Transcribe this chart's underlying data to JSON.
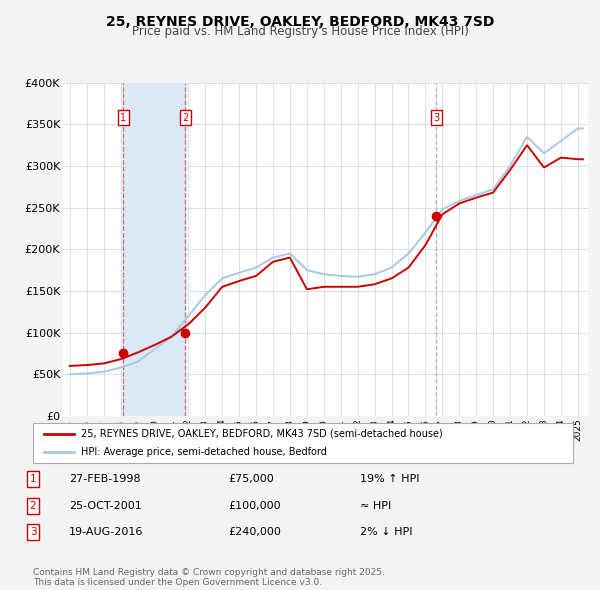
{
  "title": "25, REYNES DRIVE, OAKLEY, BEDFORD, MK43 7SD",
  "subtitle": "Price paid vs. HM Land Registry's House Price Index (HPI)",
  "bg_color": "#f2f4f5",
  "plot_bg": "#ffffff",
  "grid_color": "#c8d4e0",
  "red_line_color": "#cc0000",
  "blue_line_color": "#a8c8e8",
  "sale_marker_color": "#cc0000",
  "sale_dates": [
    1998.15,
    2001.81,
    2016.63
  ],
  "sale_prices": [
    75000,
    100000,
    240000
  ],
  "sale_labels": [
    "1",
    "2",
    "3"
  ],
  "vline_color_12": "#e06060",
  "vline_color_3": "#aaaacc",
  "shade_color": "#daeaf5",
  "legend_label_red": "25, REYNES DRIVE, OAKLEY, BEDFORD, MK43 7SD (semi-detached house)",
  "legend_label_blue": "HPI: Average price, semi-detached house, Bedford",
  "table_rows": [
    [
      "1",
      "27-FEB-1998",
      "£75,000",
      "19% ↑ HPI"
    ],
    [
      "2",
      "25-OCT-2001",
      "£100,000",
      "≈ HPI"
    ],
    [
      "3",
      "19-AUG-2016",
      "£240,000",
      "2% ↓ HPI"
    ]
  ],
  "footnote": "Contains HM Land Registry data © Crown copyright and database right 2025.\nThis data is licensed under the Open Government Licence v3.0.",
  "ylim": [
    0,
    400000
  ],
  "yticks": [
    0,
    50000,
    100000,
    150000,
    200000,
    250000,
    300000,
    350000,
    400000
  ],
  "ytick_labels": [
    "£0",
    "£50K",
    "£100K",
    "£150K",
    "£200K",
    "£250K",
    "£300K",
    "£350K",
    "£400K"
  ],
  "xlim_start": 1994.6,
  "xlim_end": 2025.6,
  "hpi_years": [
    1995,
    1996,
    1997,
    1998,
    1999,
    2000,
    2001,
    2002,
    2003,
    2004,
    2005,
    2006,
    2007,
    2008,
    2009,
    2010,
    2011,
    2012,
    2013,
    2014,
    2015,
    2016,
    2017,
    2018,
    2019,
    2020,
    2021,
    2022,
    2023,
    2024,
    2025
  ],
  "hpi_vals": [
    50000,
    51000,
    53000,
    58000,
    65000,
    80000,
    95000,
    120000,
    145000,
    165000,
    172000,
    178000,
    190000,
    195000,
    175000,
    170000,
    168000,
    167000,
    170000,
    178000,
    195000,
    220000,
    248000,
    258000,
    265000,
    272000,
    300000,
    335000,
    315000,
    330000,
    345000
  ],
  "red_vals": [
    60000,
    61000,
    63000,
    68000,
    76000,
    85000,
    95000,
    110000,
    130000,
    155000,
    162000,
    168000,
    185000,
    190000,
    152000,
    155000,
    155000,
    155000,
    158000,
    165000,
    178000,
    205000,
    242000,
    255000,
    262000,
    268000,
    295000,
    325000,
    298000,
    310000,
    308000
  ]
}
